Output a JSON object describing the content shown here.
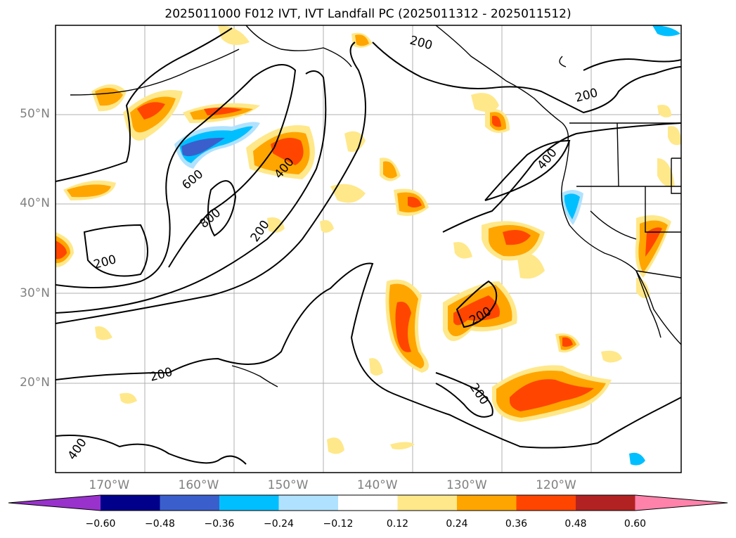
{
  "title": "2025011000 F012 IVT, IVT Landfall PC (2025011312 - 2025011512)",
  "lat_labels": [
    {
      "lat": 50,
      "label": "50°N"
    },
    {
      "lat": 40,
      "label": "40°N"
    },
    {
      "lat": 30,
      "label": "30°N"
    },
    {
      "lat": 20,
      "label": "20°N"
    }
  ],
  "lon_labels": [
    {
      "lon": -170,
      "label": "170°W"
    },
    {
      "lon": -160,
      "label": "160°W"
    },
    {
      "lon": -150,
      "label": "150°W"
    },
    {
      "lon": -140,
      "label": "140°W"
    },
    {
      "lon": -130,
      "label": "130°W"
    },
    {
      "lon": -120,
      "label": "120°W"
    }
  ],
  "map_extent": {
    "lon_min": -176,
    "lon_max": -106,
    "lat_min": 10,
    "lat_max": 60
  },
  "contour_labels": [
    "200",
    "200",
    "200",
    "200",
    "200",
    "200",
    "200",
    "400",
    "400",
    "400",
    "600",
    "800"
  ],
  "colorbar": {
    "colors": [
      "#9932cc",
      "#00008b",
      "#3a5fcd",
      "#00bfff",
      "#b0e2ff",
      "#ffffff",
      "#ffe88a",
      "#ffa500",
      "#ff4500",
      "#b22222",
      "#ff82ab"
    ],
    "tick_labels": [
      "−0.60",
      "−0.48",
      "−0.36",
      "−0.24",
      "−0.12",
      "0.12",
      "0.24",
      "0.36",
      "0.48",
      "0.60"
    ]
  }
}
